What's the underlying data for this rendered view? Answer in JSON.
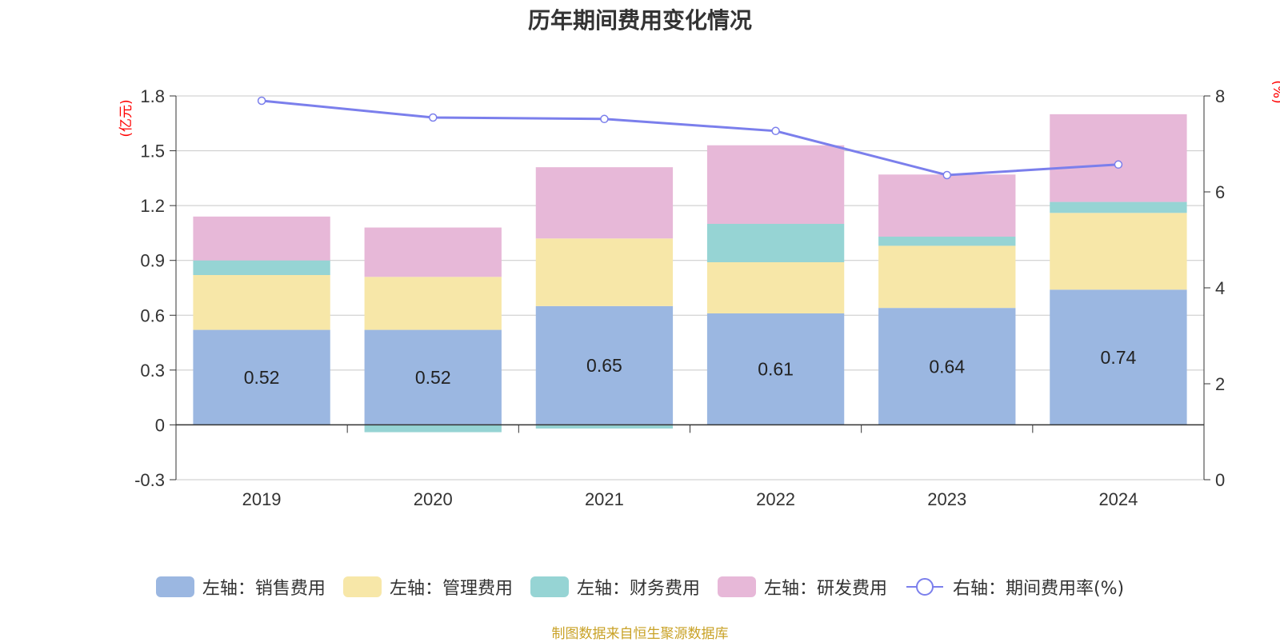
{
  "title": "历年期间费用变化情况",
  "source": "制图数据来自恒生聚源数据库",
  "colors": {
    "sales": "#9bb7e1",
    "admin": "#f7e7a8",
    "finance": "#96d4d4",
    "rd": "#e7b8d8",
    "rate": "#7b7fec",
    "unit": "#ff0000",
    "grid": "#c8c8c8",
    "axis": "#333333"
  },
  "chart_data": {
    "type": "bar",
    "stacked": true,
    "title": "历年期间费用变化情况",
    "categories": [
      "2019",
      "2020",
      "2021",
      "2022",
      "2023",
      "2024"
    ],
    "left_axis": {
      "unit": "(亿元)",
      "ylim": [
        -0.3,
        1.8
      ],
      "ticks": [
        -0.3,
        0,
        0.3,
        0.6,
        0.9,
        1.2,
        1.5,
        1.8
      ],
      "tick_labels": [
        "-0.3",
        "0",
        "0.3",
        "0.6",
        "0.9",
        "1.2",
        "1.5",
        "1.8"
      ]
    },
    "right_axis": {
      "unit": "(%)",
      "ylim": [
        0,
        8
      ],
      "ticks": [
        0,
        2,
        4,
        6,
        8
      ],
      "tick_labels": [
        "0",
        "2",
        "4",
        "6",
        "8"
      ]
    },
    "series": [
      {
        "key": "sales",
        "name": "左轴：销售费用",
        "axis": "left",
        "type": "bar",
        "values": [
          0.52,
          0.52,
          0.65,
          0.61,
          0.64,
          0.74
        ],
        "labels": [
          "0.52",
          "0.52",
          "0.65",
          "0.61",
          "0.64",
          "0.74"
        ]
      },
      {
        "key": "admin",
        "name": "左轴：管理费用",
        "axis": "left",
        "type": "bar",
        "values": [
          0.3,
          0.29,
          0.37,
          0.28,
          0.34,
          0.42
        ]
      },
      {
        "key": "finance",
        "name": "左轴：财务费用",
        "axis": "left",
        "type": "bar",
        "values": [
          0.08,
          -0.04,
          -0.02,
          0.21,
          0.05,
          0.06
        ]
      },
      {
        "key": "rd",
        "name": "左轴：研发费用",
        "axis": "left",
        "type": "bar",
        "values": [
          0.24,
          0.27,
          0.39,
          0.43,
          0.34,
          0.48
        ]
      },
      {
        "key": "rate",
        "name": "右轴：期间费用率(%)",
        "axis": "right",
        "type": "line",
        "values": [
          7.9,
          7.55,
          7.52,
          7.27,
          6.35,
          6.57
        ]
      }
    ]
  }
}
